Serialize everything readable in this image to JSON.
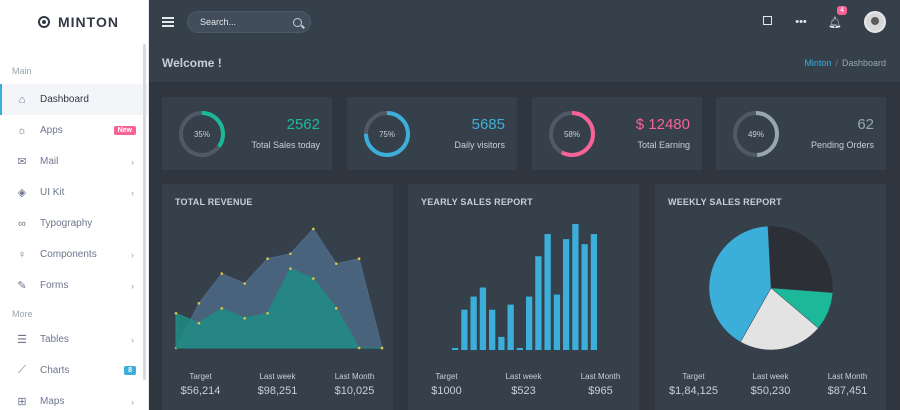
{
  "brand": {
    "name": "MINTON"
  },
  "sidebar": {
    "section_main": "Main",
    "section_more": "More",
    "items": [
      {
        "label": "Dashboard",
        "icon": "home-icon"
      },
      {
        "label": "Apps",
        "icon": "apps-icon",
        "badge": "New"
      },
      {
        "label": "Mail",
        "icon": "mail-icon"
      },
      {
        "label": "UI Kit",
        "icon": "paint-icon"
      },
      {
        "label": "Typography",
        "icon": "infinity-icon"
      },
      {
        "label": "Components",
        "icon": "bulb-icon"
      },
      {
        "label": "Forms",
        "icon": "edit-icon"
      },
      {
        "label": "Tables",
        "icon": "list-icon"
      },
      {
        "label": "Charts",
        "icon": "chart-line-icon",
        "badge": "8"
      },
      {
        "label": "Maps",
        "icon": "map-icon"
      }
    ]
  },
  "topbar": {
    "search_placeholder": "Search...",
    "notification_count": "4"
  },
  "page": {
    "title": "Welcome !",
    "breadcrumb": [
      "Minton",
      "Dashboard"
    ]
  },
  "stats": [
    {
      "value": "2562",
      "label": "Total Sales today",
      "percent": "35%",
      "fraction": 0.35,
      "color": "#1bb99a"
    },
    {
      "value": "5685",
      "label": "Daily visitors",
      "percent": "75%",
      "fraction": 0.75,
      "color": "#3bafda"
    },
    {
      "value": "$ 12480",
      "label": "Total Earning",
      "percent": "58%",
      "fraction": 0.58,
      "color": "#f76397"
    },
    {
      "value": "62",
      "label": "Pending Orders",
      "percent": "49%",
      "fraction": 0.49,
      "color": "#98a6ad"
    }
  ],
  "panels": {
    "revenue": {
      "title": "TOTAL REVENUE",
      "footer": [
        {
          "label": "Target",
          "value": "$56,214"
        },
        {
          "label": "Last week",
          "value": "$98,251"
        },
        {
          "label": "Last Month",
          "value": "$10,025"
        }
      ]
    },
    "yearly": {
      "title": "YEARLY SALES REPORT",
      "footer": [
        {
          "label": "Target",
          "value": "$1000"
        },
        {
          "label": "Last week",
          "value": "$523"
        },
        {
          "label": "Last Month",
          "value": "$965"
        }
      ]
    },
    "weekly": {
      "title": "WEEKLY SALES REPORT",
      "footer": [
        {
          "label": "Target",
          "value": "$1,84,125"
        },
        {
          "label": "Last week",
          "value": "$50,230"
        },
        {
          "label": "Last Month",
          "value": "$87,451"
        }
      ]
    }
  },
  "chart_data": [
    {
      "type": "area",
      "title": "TOTAL REVENUE",
      "x": [
        0,
        1,
        2,
        3,
        4,
        5,
        6,
        7,
        8,
        9
      ],
      "series": [
        {
          "values": [
            0,
            45,
            75,
            65,
            90,
            95,
            120,
            85,
            90,
            0
          ],
          "color": "#4d6a86"
        },
        {
          "values": [
            35,
            25,
            40,
            30,
            35,
            80,
            70,
            40,
            0,
            0
          ],
          "color": "#1f8c84"
        }
      ],
      "ylim": [
        0,
        125
      ]
    },
    {
      "type": "bar",
      "title": "YEARLY SALES REPORT",
      "values": [
        2,
        40,
        53,
        62,
        40,
        13,
        45,
        2,
        53,
        93,
        115,
        55,
        110,
        125,
        105,
        115
      ],
      "ylim": [
        0,
        125
      ],
      "color": "#3bafda"
    },
    {
      "type": "pie",
      "title": "WEEKLY SALES REPORT",
      "values": [
        27,
        10,
        22,
        41
      ],
      "colors": [
        "#2c3036",
        "#1bb99a",
        "#e3e3e3",
        "#3bafda"
      ]
    }
  ]
}
